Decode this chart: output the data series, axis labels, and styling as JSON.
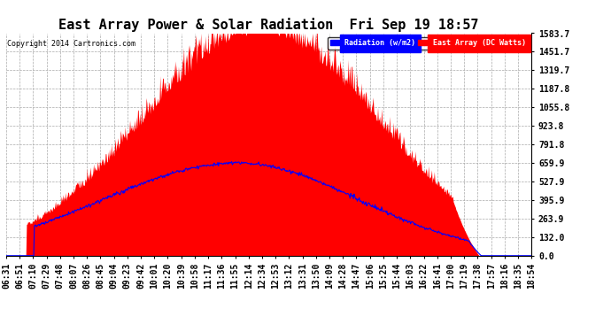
{
  "title": "East Array Power & Solar Radiation  Fri Sep 19 18:57",
  "copyright": "Copyright 2014 Cartronics.com",
  "legend_radiation": "Radiation (w/m2)",
  "legend_east": "East Array (DC Watts)",
  "y_max": 1583.7,
  "y_min": 0.0,
  "y_ticks": [
    0.0,
    132.0,
    263.9,
    395.9,
    527.9,
    659.9,
    791.8,
    923.8,
    1055.8,
    1187.8,
    1319.7,
    1451.7,
    1583.7
  ],
  "background_color": "#ffffff",
  "plot_bg_color": "#ffffff",
  "grid_color": "#aaaaaa",
  "radiation_color": "#ff0000",
  "east_array_color": "#0000ff",
  "title_fontsize": 11,
  "tick_fontsize": 7,
  "x_tick_labels": [
    "06:31",
    "06:51",
    "07:10",
    "07:29",
    "07:48",
    "08:07",
    "08:26",
    "08:45",
    "09:04",
    "09:23",
    "09:42",
    "10:01",
    "10:20",
    "10:39",
    "10:58",
    "11:17",
    "11:36",
    "11:55",
    "12:14",
    "12:34",
    "12:53",
    "13:12",
    "13:31",
    "13:50",
    "14:09",
    "14:28",
    "14:47",
    "15:06",
    "15:25",
    "15:44",
    "16:03",
    "16:22",
    "16:41",
    "17:00",
    "17:19",
    "17:38",
    "17:57",
    "18:16",
    "18:35",
    "18:54"
  ],
  "num_points": 800
}
